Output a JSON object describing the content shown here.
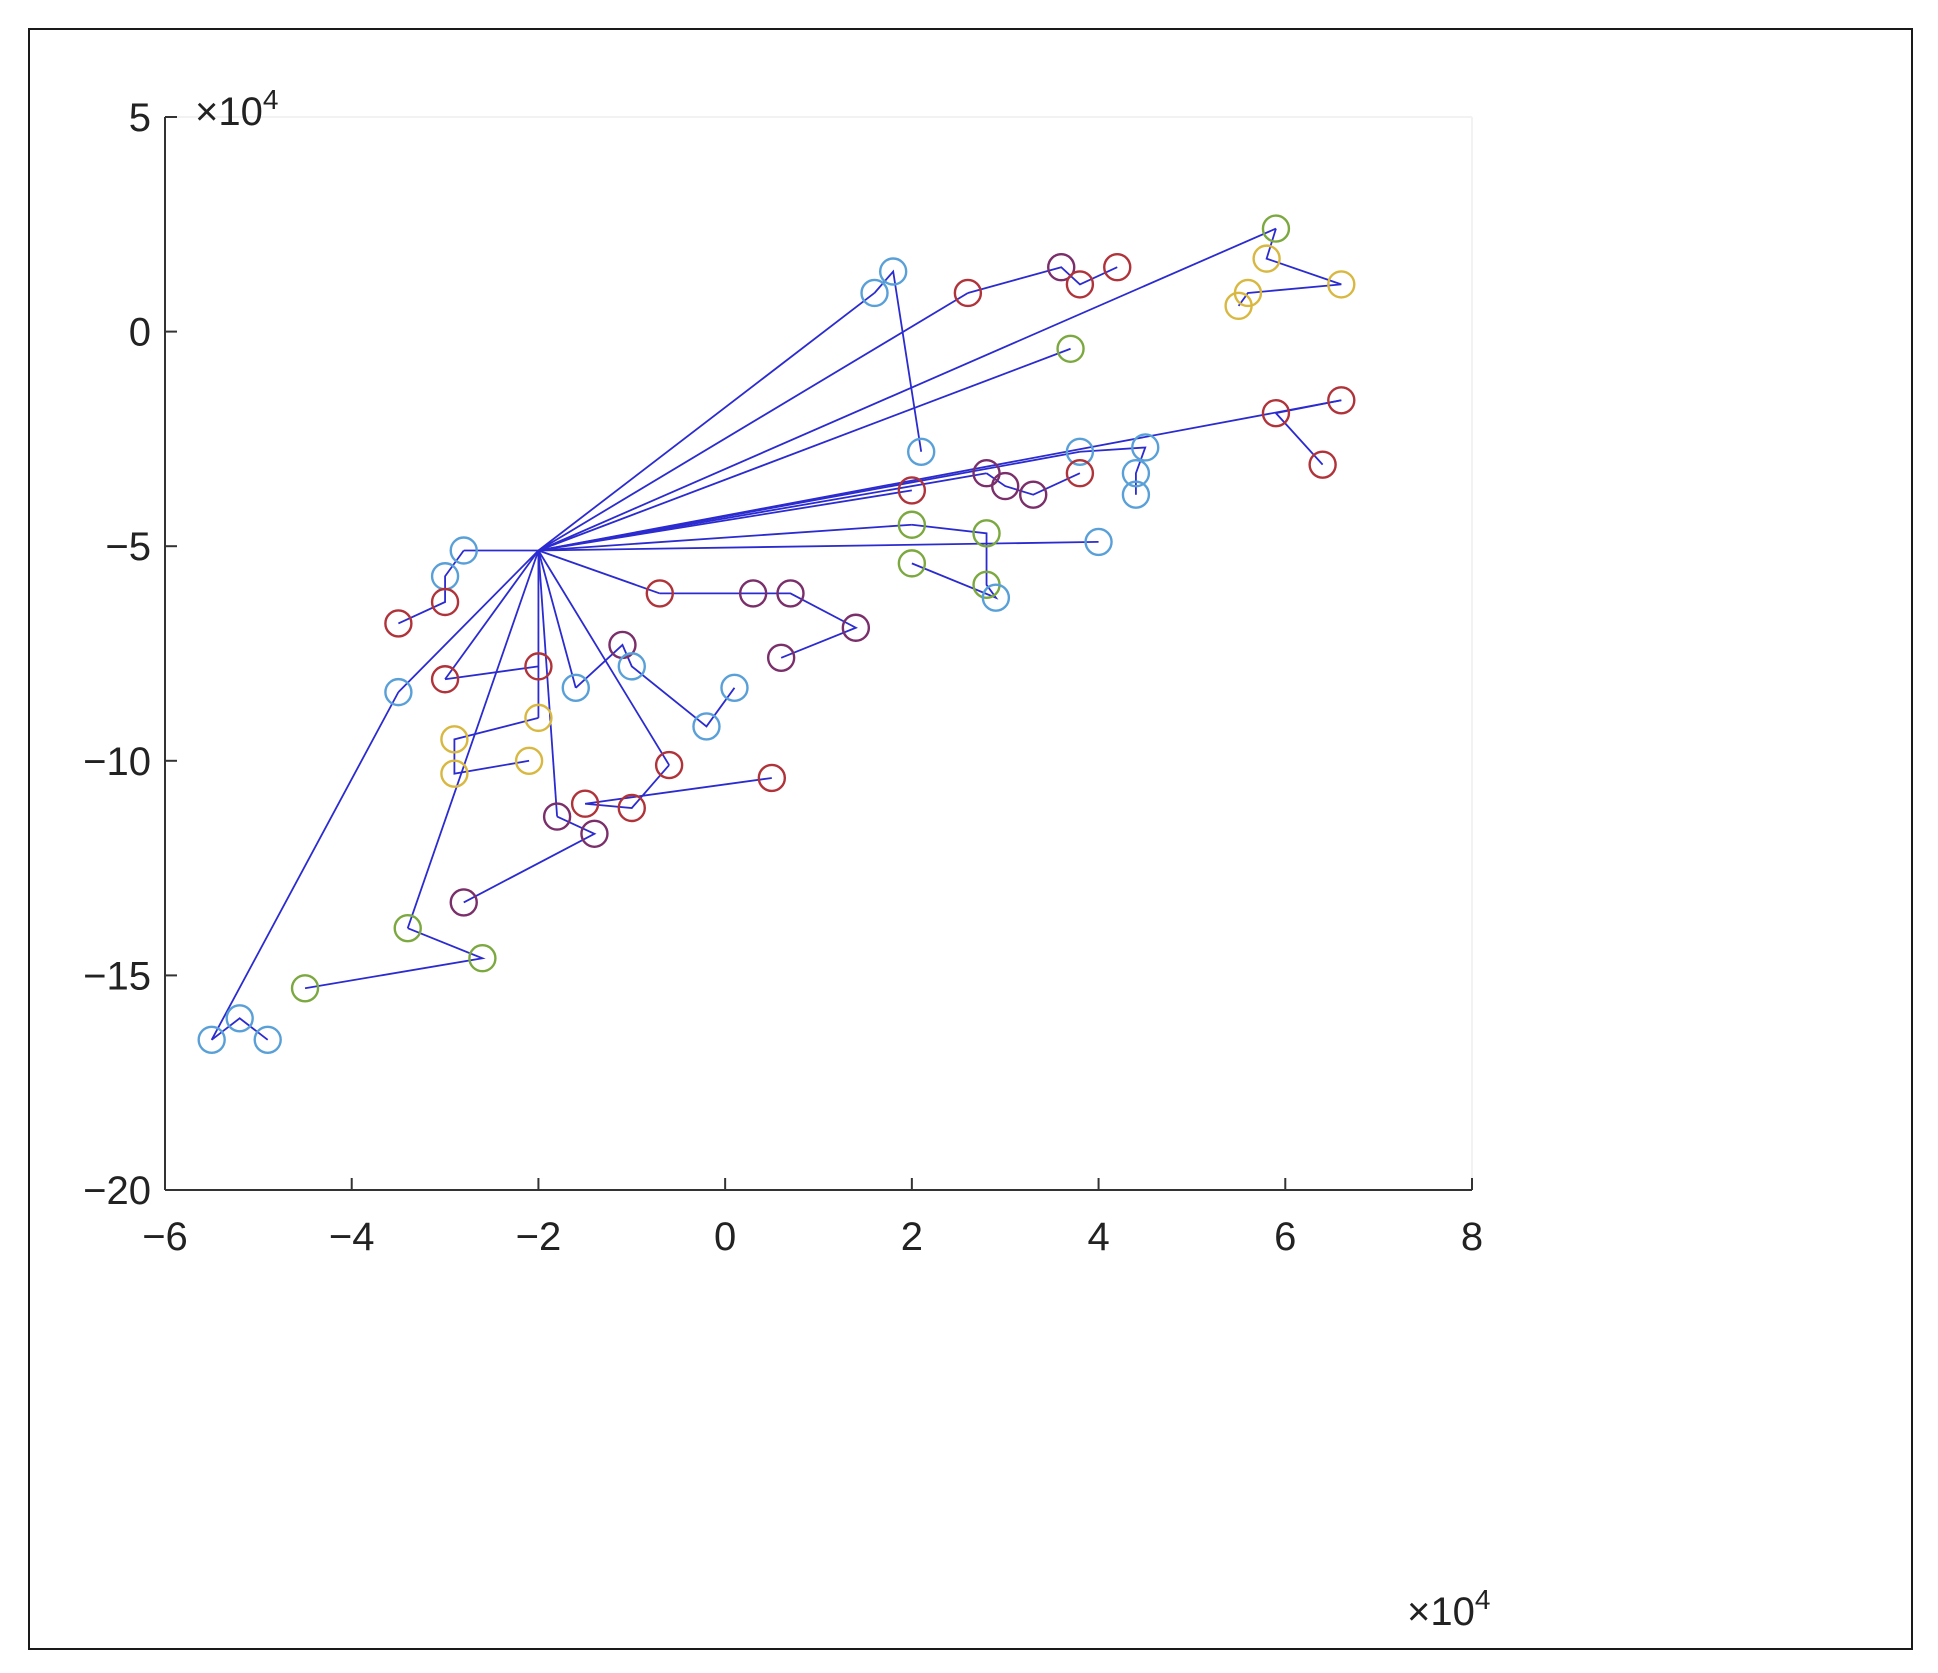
{
  "chart_data": {
    "type": "scatter",
    "title": "",
    "xlabel": "",
    "ylabel": "",
    "xlim": [
      -6,
      8
    ],
    "ylim": [
      -20,
      5
    ],
    "x_ticks": [
      -6,
      -4,
      -2,
      0,
      2,
      4,
      6,
      8
    ],
    "y_ticks": [
      5,
      0,
      -5,
      -10,
      -15,
      -20
    ],
    "x_tick_labels": [
      "−6",
      "−4",
      "−2",
      "0",
      "2",
      "4",
      "6",
      "8"
    ],
    "y_tick_labels": [
      "5",
      "0",
      "−5",
      "−10",
      "−15",
      "−20"
    ],
    "x_multiplier": {
      "base": "×10",
      "exponent": "4"
    },
    "y_multiplier": {
      "base": "×10",
      "exponent": "4"
    },
    "grid": false,
    "legend": "none",
    "hub": [
      -2.0,
      -5.1
    ],
    "line_color": "#2b2bd0",
    "marker_colors": {
      "blue": "#5aa0d8",
      "red": "#b0333a",
      "yellow": "#d8b840",
      "green": "#7ca840",
      "purple": "#7a2e6a"
    },
    "series": [
      {
        "values": [
          [
            1.6,
            0.9
          ],
          [
            1.8,
            1.4
          ],
          [
            2.1,
            -2.8
          ]
        ],
        "marker_colors": [
          "blue",
          "blue",
          "blue"
        ]
      },
      {
        "values": [
          [
            2.6,
            0.9
          ],
          [
            3.6,
            1.5
          ],
          [
            3.8,
            1.1
          ],
          [
            4.2,
            1.5
          ]
        ],
        "marker_colors": [
          "red",
          "purple",
          "red",
          "red"
        ]
      },
      {
        "values": [
          [
            5.9,
            2.4
          ],
          [
            5.8,
            1.7
          ],
          [
            6.6,
            1.1
          ],
          [
            5.6,
            0.9
          ],
          [
            5.5,
            0.6
          ]
        ],
        "marker_colors": [
          "green",
          "yellow",
          "yellow",
          "yellow",
          "yellow"
        ]
      },
      {
        "values": [
          [
            3.7,
            -0.4
          ]
        ],
        "marker_colors": [
          "green"
        ]
      },
      {
        "values": [
          [
            6.6,
            -1.6
          ],
          [
            5.9,
            -1.9
          ],
          [
            6.4,
            -3.1
          ]
        ],
        "marker_colors": [
          "red",
          "red",
          "red"
        ]
      },
      {
        "values": [
          [
            3.8,
            -2.8
          ],
          [
            4.5,
            -2.7
          ],
          [
            4.4,
            -3.3
          ],
          [
            4.4,
            -3.8
          ]
        ],
        "marker_colors": [
          "blue",
          "blue",
          "blue",
          "blue"
        ]
      },
      {
        "values": [
          [
            2.8,
            -3.3
          ],
          [
            3.0,
            -3.6
          ],
          [
            3.3,
            -3.8
          ],
          [
            3.8,
            -3.3
          ]
        ],
        "marker_colors": [
          "purple",
          "purple",
          "purple",
          "red"
        ]
      },
      {
        "values": [
          [
            2.0,
            -3.7
          ]
        ],
        "marker_colors": [
          "red"
        ]
      },
      {
        "values": [
          [
            2.0,
            -4.5
          ],
          [
            2.8,
            -4.7
          ],
          [
            2.8,
            -5.9
          ],
          [
            2.9,
            -6.2
          ],
          [
            2.0,
            -5.4
          ]
        ],
        "marker_colors": [
          "green",
          "green",
          "green",
          "blue",
          "green"
        ]
      },
      {
        "values": [
          [
            4.0,
            -4.9
          ]
        ],
        "marker_colors": [
          "blue"
        ]
      },
      {
        "values": [
          [
            -0.7,
            -6.1
          ],
          [
            0.3,
            -6.1
          ],
          [
            0.7,
            -6.1
          ],
          [
            1.4,
            -6.9
          ],
          [
            0.6,
            -7.6
          ]
        ],
        "marker_colors": [
          "red",
          "purple",
          "purple",
          "purple",
          "purple"
        ]
      },
      {
        "values": [
          [
            -2.8,
            -5.1
          ],
          [
            -3.0,
            -5.7
          ],
          [
            -3.0,
            -6.3
          ],
          [
            -3.5,
            -6.8
          ]
        ],
        "marker_colors": [
          "blue",
          "blue",
          "red",
          "red"
        ]
      },
      {
        "values": [
          [
            -3.0,
            -8.1
          ],
          [
            -2.0,
            -7.8
          ]
        ],
        "marker_colors": [
          "red",
          "red"
        ]
      },
      {
        "values": [
          [
            -3.5,
            -8.4
          ],
          [
            -5.5,
            -16.5
          ],
          [
            -5.2,
            -16.0
          ],
          [
            -4.9,
            -16.5
          ]
        ],
        "marker_colors": [
          "blue",
          "blue",
          "blue",
          "blue"
        ]
      },
      {
        "values": [
          [
            -1.6,
            -8.3
          ],
          [
            -1.1,
            -7.3
          ],
          [
            -1.0,
            -7.8
          ],
          [
            -0.2,
            -9.2
          ],
          [
            0.1,
            -8.3
          ]
        ],
        "marker_colors": [
          "blue",
          "purple",
          "blue",
          "blue",
          "blue"
        ]
      },
      {
        "values": [
          [
            -2.0,
            -9.0
          ],
          [
            -2.9,
            -9.5
          ],
          [
            -2.9,
            -10.3
          ],
          [
            -2.1,
            -10.0
          ]
        ],
        "marker_colors": [
          "yellow",
          "yellow",
          "yellow",
          "yellow"
        ]
      },
      {
        "values": [
          [
            -0.6,
            -10.1
          ],
          [
            -1.0,
            -11.1
          ],
          [
            -1.5,
            -11.0
          ],
          [
            0.5,
            -10.4
          ]
        ],
        "marker_colors": [
          "red",
          "red",
          "red",
          "red"
        ]
      },
      {
        "values": [
          [
            -1.8,
            -11.3
          ],
          [
            -1.4,
            -11.7
          ],
          [
            -2.8,
            -13.3
          ]
        ],
        "marker_colors": [
          "purple",
          "purple",
          "purple"
        ]
      },
      {
        "values": [
          [
            -3.4,
            -13.9
          ],
          [
            -2.6,
            -14.6
          ],
          [
            -4.5,
            -15.3
          ]
        ],
        "marker_colors": [
          "green",
          "green",
          "green"
        ]
      }
    ]
  }
}
